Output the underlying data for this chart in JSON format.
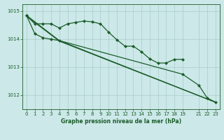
{
  "background_color": "#cce8e8",
  "grid_color": "#aacccc",
  "line_color": "#1a5c2a",
  "title": "Graphe pression niveau de la mer (hPa)",
  "xlim": [
    -0.5,
    23.5
  ],
  "ylim": [
    1011.5,
    1015.25
  ],
  "yticks": [
    1012,
    1013,
    1014,
    1015
  ],
  "xticks": [
    0,
    1,
    2,
    3,
    4,
    5,
    6,
    7,
    8,
    9,
    10,
    11,
    12,
    13,
    14,
    15,
    16,
    17,
    18,
    19,
    21,
    22,
    23
  ],
  "series": [
    {
      "x": [
        0,
        1,
        2,
        3,
        4,
        5,
        6,
        7,
        8,
        9,
        10,
        11,
        12,
        13,
        14,
        15,
        16,
        17,
        18,
        19
      ],
      "y": [
        1014.85,
        1014.55,
        1014.55,
        1014.55,
        1014.4,
        1014.55,
        1014.6,
        1014.65,
        1014.62,
        1014.55,
        1014.25,
        1013.98,
        1013.75,
        1013.75,
        1013.55,
        1013.3,
        1013.15,
        1013.15,
        1013.28,
        1013.28
      ],
      "marker": true,
      "markersize": 2.5
    },
    {
      "x": [
        0,
        1,
        2,
        3,
        4,
        19,
        21,
        22,
        23
      ],
      "y": [
        1014.85,
        1014.2,
        1014.05,
        1014.0,
        1013.95,
        1012.75,
        1012.35,
        1011.9,
        1011.75
      ],
      "marker": true,
      "markersize": 2.5
    },
    {
      "x": [
        0,
        4,
        23
      ],
      "y": [
        1014.85,
        1013.95,
        1011.75
      ],
      "marker": false,
      "markersize": 0
    },
    {
      "x": [
        0,
        4,
        23
      ],
      "y": [
        1014.82,
        1013.93,
        1011.75
      ],
      "marker": false,
      "markersize": 0
    }
  ]
}
